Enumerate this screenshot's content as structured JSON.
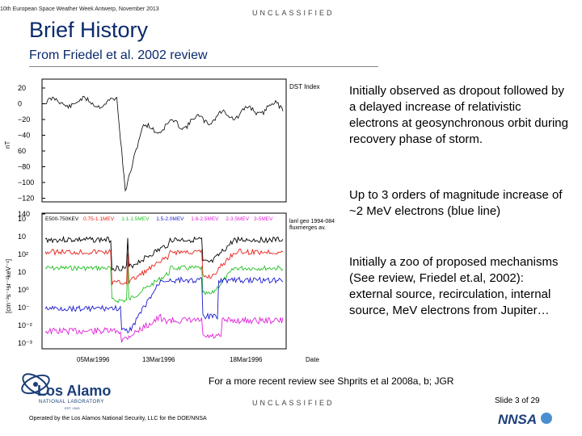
{
  "header": {
    "conference": "10th European Space Weather Week Antwerp, November 2013",
    "classification": "UNCLASSIFIED"
  },
  "title": "Brief History",
  "subtitle": "From Friedel et al. 2002 review",
  "figure": {
    "dst_label": "DST Index",
    "dst_yticks": [
      "20",
      "0",
      "−20",
      "−40",
      "60",
      "−80",
      "−100",
      "−120",
      "140"
    ],
    "dst_ylabel": "nT",
    "flux_yticks": [
      "10",
      "10",
      "10²",
      "10",
      "10⁰",
      "10⁻",
      "10⁻²",
      "10⁻³"
    ],
    "flux_ylabel": "[cm⁻²s⁻¹sr⁻¹keV⁻¹]",
    "channels": [
      "E500-750KEV",
      "0.75-1.1MEV",
      "1.1-1.5MEV",
      "1.5-2.0MEV",
      "1.8-2.5MEV",
      "2-3.5MEV",
      "3-5MEV"
    ],
    "satellite": "lanl geo 1994-084",
    "satellite_note": "fluxmerges av.",
    "xticks": [
      "05Mar1996",
      "13Mar1996",
      "18Mar1996",
      "Date"
    ],
    "colors": {
      "black": "#000000",
      "red": "#e8201a",
      "green": "#22c022",
      "blue": "#1a1ad0",
      "magenta": "#e020d8"
    }
  },
  "bullets": [
    "Initially observed as dropout followed by a delayed increase of relativistic electrons at geosynchronous orbit during recovery phase of storm.",
    "Up to 3 orders of magnitude increase of ~2 MeV electrons (blue line)",
    "Initially a zoo of proposed mechanisms (See review, Friedel et.al, 2002): external source, recirculation, internal source, MeV electrons from Jupiter…"
  ],
  "reference": "For a more recent review see Shprits et al 2008a, b; JGR",
  "footer": {
    "classification": "UNCLASSIFIED",
    "operator": "Operated by the Los Alamos National Security, LLC for the DOE/NNSA",
    "slide_number": "Slide 3 of 29",
    "lab_name": "Los Alamos",
    "lab_sub": "NATIONAL LABORATORY",
    "lab_est": "EST. 1943",
    "nnsa": "NNSA"
  }
}
